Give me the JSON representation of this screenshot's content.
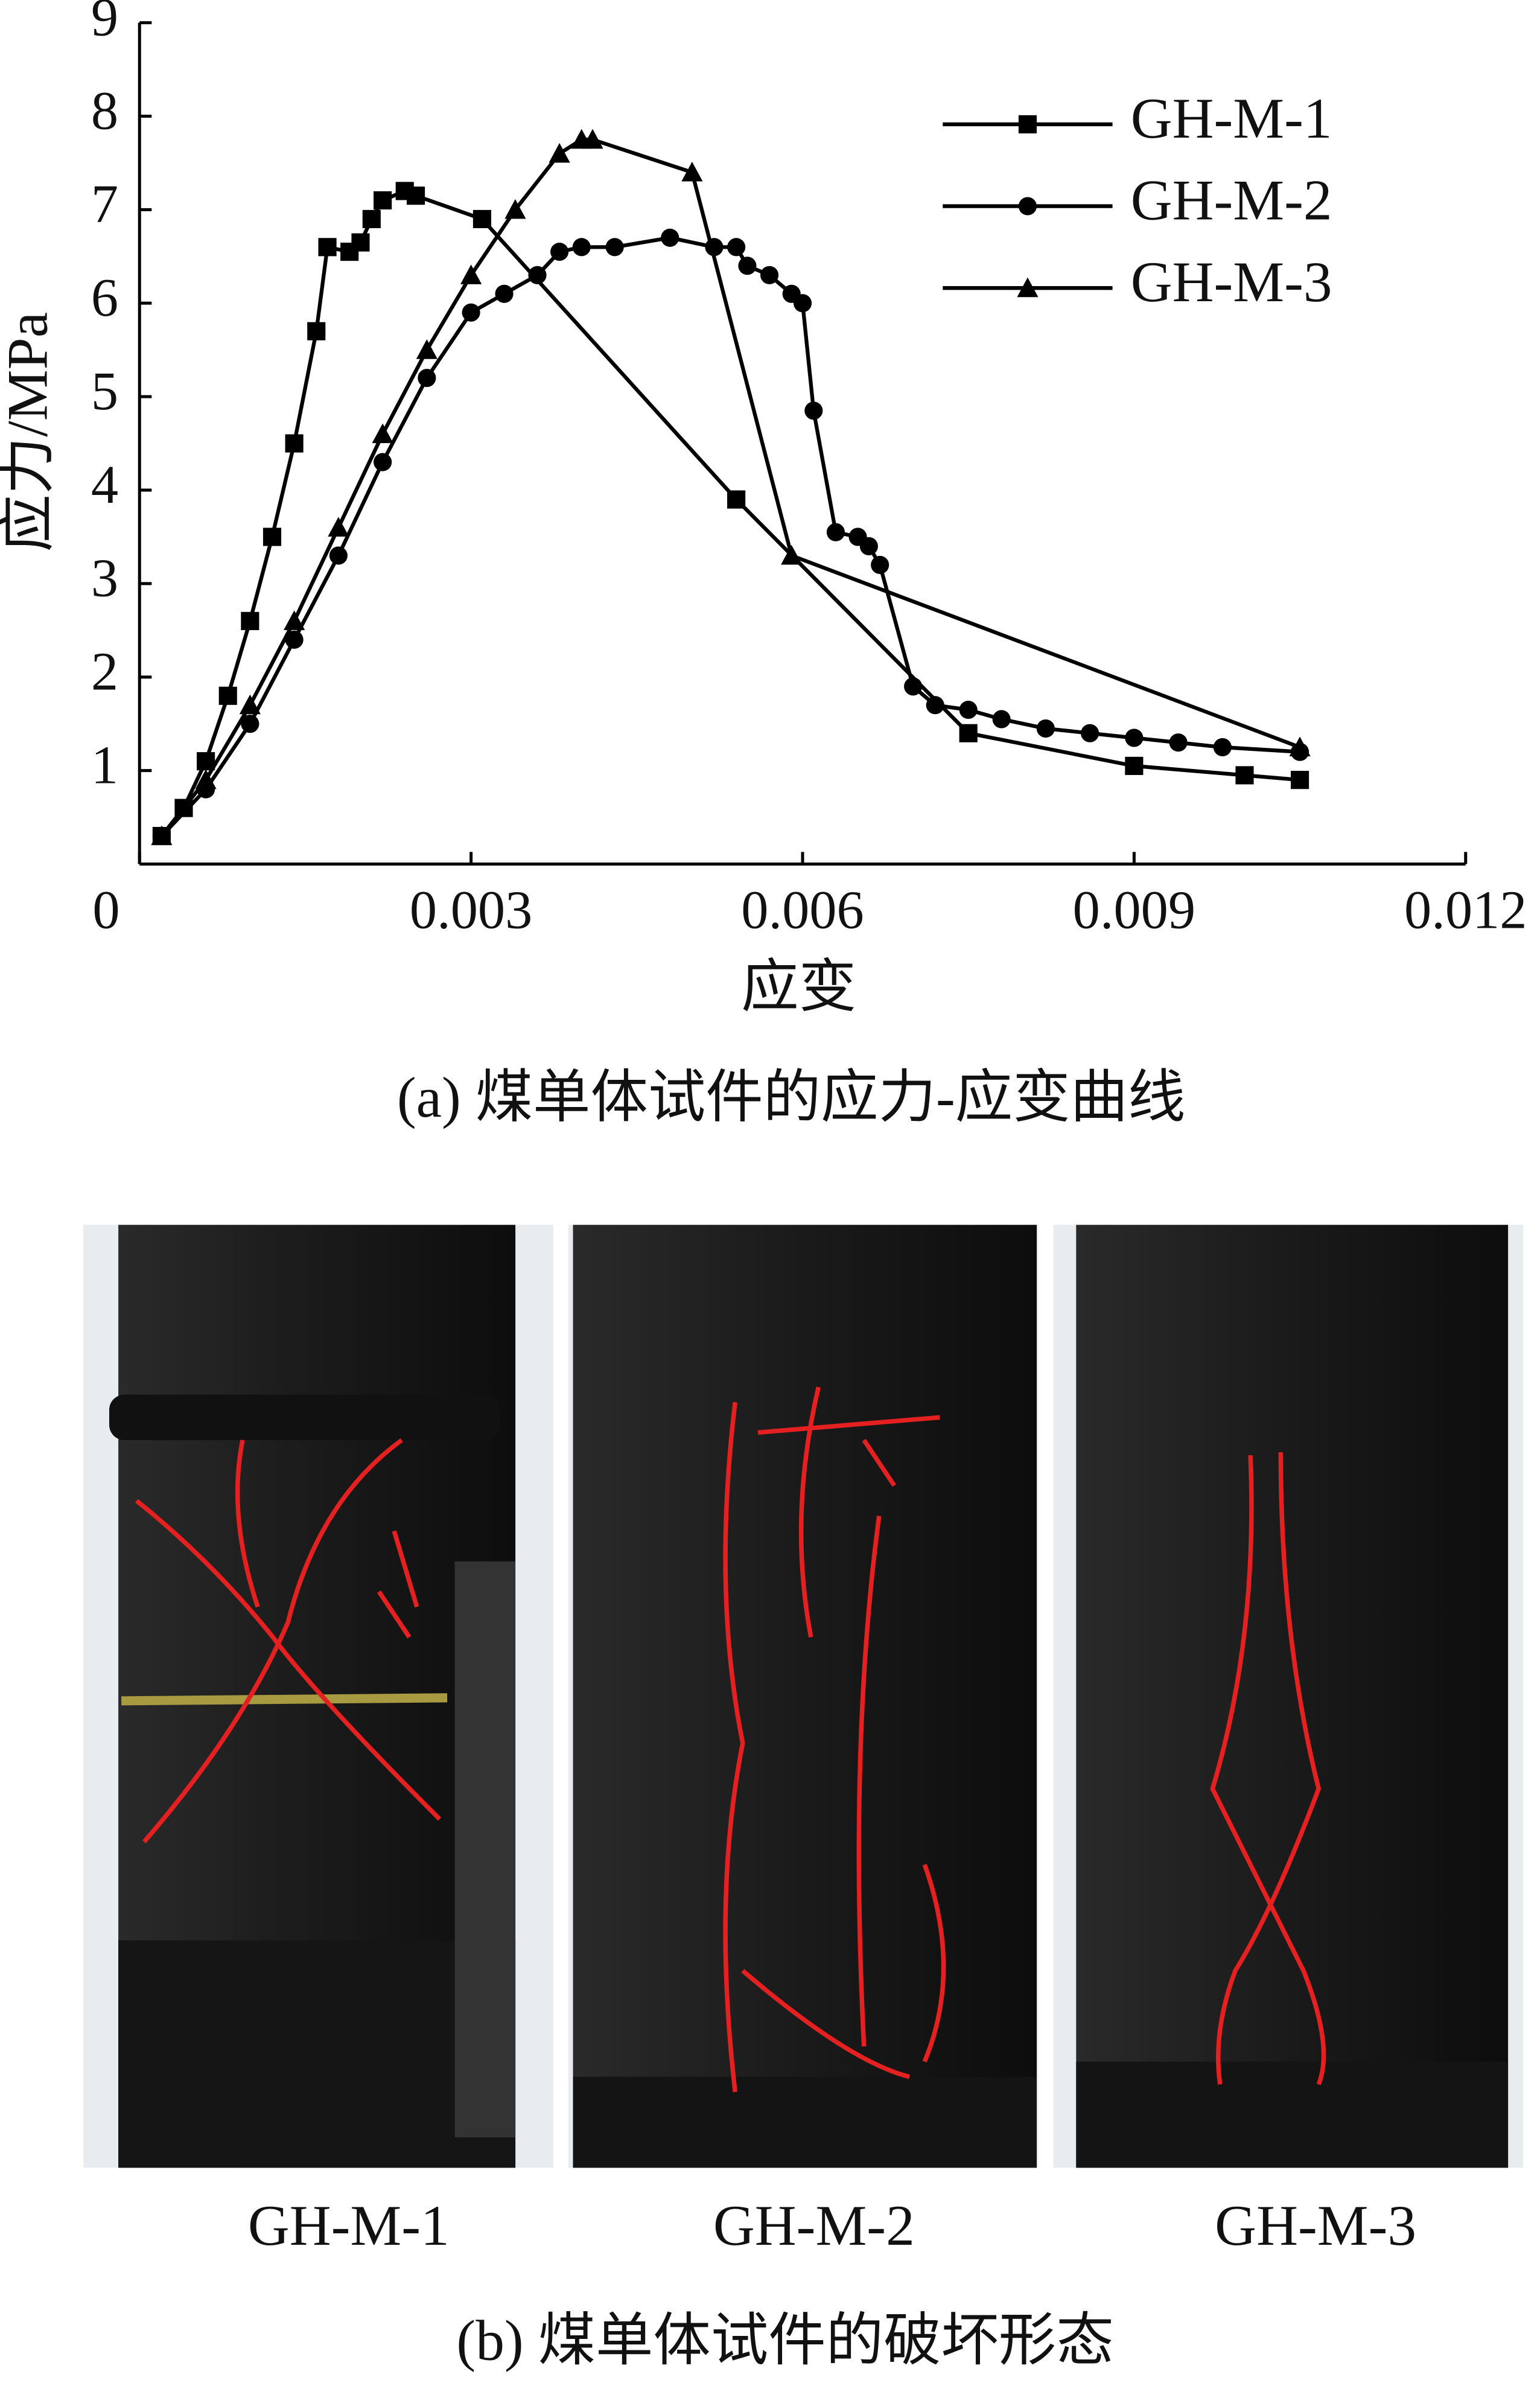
{
  "chart_data": {
    "type": "line",
    "y_label": "应力/MPa",
    "x_label": "应变",
    "caption": "(a) 煤单体试件的应力-应变曲线",
    "xlim": [
      0,
      0.012
    ],
    "xticks": [
      0,
      0.003,
      0.006,
      0.009,
      0.012
    ],
    "ylim": [
      0,
      9
    ],
    "yticks": [
      1,
      2,
      3,
      4,
      5,
      6,
      7,
      8,
      9
    ],
    "grid": false,
    "legend": "upper right",
    "series": [
      {
        "name": "GH-M-1",
        "color": "#000000",
        "marker": "square",
        "x": [
          0.0002,
          0.0004,
          0.0006,
          0.0008,
          0.001,
          0.0012,
          0.0014,
          0.0016,
          0.0017,
          0.0019,
          0.002,
          0.0021,
          0.0022,
          0.0024,
          0.0025,
          0.0031,
          0.0054,
          0.0075,
          0.009,
          0.01,
          0.0105
        ],
        "values": [
          0.3,
          0.6,
          1.1,
          1.8,
          2.6,
          3.5,
          4.5,
          5.7,
          6.6,
          6.55,
          6.65,
          6.9,
          7.1,
          7.2,
          7.15,
          6.9,
          3.9,
          1.4,
          1.05,
          0.95,
          0.9
        ]
      },
      {
        "name": "GH-M-2",
        "color": "#000000",
        "marker": "circle",
        "x": [
          0.0002,
          0.0006,
          0.001,
          0.0014,
          0.0018,
          0.0022,
          0.0026,
          0.003,
          0.0033,
          0.0036,
          0.0038,
          0.004,
          0.0043,
          0.0048,
          0.0052,
          0.0054,
          0.0055,
          0.0057,
          0.0059,
          0.006,
          0.0061,
          0.0063,
          0.0065,
          0.0066,
          0.0067,
          0.007,
          0.0072,
          0.0075,
          0.0078,
          0.0082,
          0.0086,
          0.009,
          0.0094,
          0.0098,
          0.0105
        ],
        "values": [
          0.3,
          0.8,
          1.5,
          2.4,
          3.3,
          4.3,
          5.2,
          5.9,
          6.1,
          6.3,
          6.55,
          6.6,
          6.6,
          6.7,
          6.6,
          6.6,
          6.4,
          6.3,
          6.1,
          6.0,
          4.85,
          3.55,
          3.5,
          3.4,
          3.2,
          1.9,
          1.7,
          1.65,
          1.55,
          1.45,
          1.4,
          1.35,
          1.3,
          1.25,
          1.2
        ]
      },
      {
        "name": "GH-M-3",
        "color": "#000000",
        "marker": "triangle",
        "x": [
          0.0002,
          0.0006,
          0.001,
          0.0014,
          0.0018,
          0.0022,
          0.0026,
          0.003,
          0.0034,
          0.0038,
          0.004,
          0.0041,
          0.005,
          0.0059,
          0.0105
        ],
        "values": [
          0.3,
          0.9,
          1.7,
          2.6,
          3.6,
          4.6,
          5.5,
          6.3,
          7.0,
          7.6,
          7.75,
          7.75,
          7.4,
          3.3,
          1.25
        ]
      }
    ]
  },
  "photos": {
    "labels": [
      "GH-M-1",
      "GH-M-2",
      "GH-M-3"
    ],
    "caption": "(b) 煤单体试件的破坏形态"
  }
}
